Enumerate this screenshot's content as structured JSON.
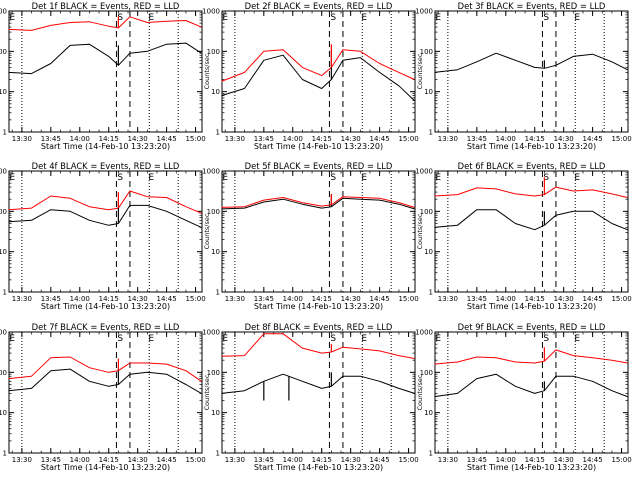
{
  "chart_data": {
    "type": "line",
    "yscale": "log",
    "ylim": [
      1,
      1000
    ],
    "y_ticks": [
      "1",
      "10",
      "100",
      "1000"
    ],
    "ylabel": "Counts/sec",
    "xlabel": "Start Time (14-Feb-10 13:23:20)",
    "xlim": [
      "13:23:20",
      "15:03:20"
    ],
    "x_ticks": [
      "13:30",
      "13:45",
      "14:00",
      "14:15",
      "14:30",
      "14:45",
      "15:00"
    ],
    "series_colors": {
      "events": "#000000",
      "lld": "#ff0000"
    },
    "markers": {
      "dotted": [
        "13:30",
        "14:36",
        "14:51"
      ],
      "dashed": [
        "14:19",
        "14:26"
      ],
      "labels": [
        {
          "text": "E",
          "x": "13:25"
        },
        {
          "text": "S",
          "x": "14:21"
        },
        {
          "text": "E",
          "x": "14:37"
        }
      ]
    },
    "panels": [
      {
        "title": "Det 1f BLACK = Events, RED = LLD",
        "x": [
          "13:23",
          "13:35",
          "13:45",
          "13:55",
          "14:05",
          "14:15",
          "14:20",
          "14:26",
          "14:35",
          "14:45",
          "14:55",
          "15:03"
        ],
        "events": [
          30,
          28,
          50,
          140,
          150,
          75,
          45,
          90,
          100,
          150,
          160,
          90
        ],
        "lld": [
          350,
          330,
          440,
          520,
          540,
          420,
          380,
          720,
          520,
          560,
          580,
          400
        ],
        "spikes": [
          {
            "x": "14:20",
            "events": 140,
            "lld": 720
          }
        ]
      },
      {
        "title": "Det 2f BLACK = Events, RED = LLD",
        "x": [
          "13:23",
          "13:35",
          "13:45",
          "13:55",
          "14:05",
          "14:15",
          "14:20",
          "14:26",
          "14:35",
          "14:45",
          "14:55",
          "15:03"
        ],
        "events": [
          8,
          12,
          60,
          80,
          20,
          12,
          20,
          60,
          70,
          30,
          14,
          6
        ],
        "lld": [
          18,
          30,
          100,
          110,
          40,
          25,
          40,
          110,
          100,
          50,
          30,
          20
        ],
        "spikes": [
          {
            "x": "14:20",
            "events": 110,
            "lld": 150
          }
        ]
      },
      {
        "title": "Det 3f BLACK = Events, RED = LLD",
        "x": [
          "13:23",
          "13:35",
          "13:45",
          "13:55",
          "14:05",
          "14:15",
          "14:20",
          "14:26",
          "14:35",
          "14:45",
          "14:55",
          "15:03"
        ],
        "events": [
          30,
          35,
          55,
          90,
          60,
          40,
          38,
          45,
          75,
          85,
          55,
          35
        ],
        "lld": [],
        "spikes": [
          {
            "x": "14:20",
            "events": 60
          }
        ]
      },
      {
        "title": "Det 4f BLACK = Events, RED = LLD",
        "x": [
          "13:23",
          "13:35",
          "13:45",
          "13:55",
          "14:05",
          "14:15",
          "14:20",
          "14:26",
          "14:35",
          "14:45",
          "14:55",
          "15:03"
        ],
        "events": [
          55,
          60,
          110,
          100,
          60,
          45,
          50,
          140,
          140,
          100,
          60,
          40
        ],
        "lld": [
          110,
          120,
          240,
          210,
          130,
          110,
          120,
          320,
          230,
          220,
          130,
          90
        ],
        "spikes": [
          {
            "x": "14:20",
            "events": 200,
            "lld": 300
          }
        ]
      },
      {
        "title": "Det 5f BLACK = Events, RED = LLD",
        "x": [
          "13:23",
          "13:35",
          "13:45",
          "13:55",
          "14:05",
          "14:15",
          "14:20",
          "14:26",
          "14:35",
          "14:45",
          "14:55",
          "15:03"
        ],
        "events": [
          115,
          120,
          170,
          200,
          150,
          120,
          130,
          210,
          200,
          190,
          150,
          115
        ],
        "lld": [
          125,
          130,
          190,
          220,
          165,
          135,
          145,
          230,
          220,
          210,
          165,
          125
        ],
        "spikes": [
          {
            "x": "14:20",
            "events": 260,
            "lld": 270
          }
        ]
      },
      {
        "title": "Det 6f BLACK = Events, RED = LLD",
        "x": [
          "13:23",
          "13:35",
          "13:45",
          "13:55",
          "14:05",
          "14:15",
          "14:20",
          "14:26",
          "14:35",
          "14:45",
          "14:55",
          "15:03"
        ],
        "events": [
          40,
          45,
          110,
          110,
          50,
          35,
          45,
          80,
          100,
          100,
          50,
          35
        ],
        "lld": [
          240,
          260,
          380,
          360,
          270,
          240,
          260,
          400,
          320,
          340,
          270,
          220
        ],
        "spikes": [
          {
            "x": "14:20",
            "events": 100,
            "lld": 700
          }
        ]
      },
      {
        "title": "Det 7f BLACK = Events, RED = LLD",
        "x": [
          "13:23",
          "13:35",
          "13:45",
          "13:55",
          "14:05",
          "14:15",
          "14:20",
          "14:26",
          "14:35",
          "14:45",
          "14:55",
          "15:03"
        ],
        "events": [
          35,
          40,
          110,
          120,
          60,
          45,
          50,
          90,
          100,
          90,
          50,
          30
        ],
        "lld": [
          70,
          80,
          230,
          240,
          130,
          100,
          110,
          170,
          170,
          160,
          110,
          60
        ],
        "spikes": [
          {
            "x": "14:20",
            "events": 120,
            "lld": 220
          }
        ]
      },
      {
        "title": "Det 8f BLACK = Events, RED = LLD",
        "x": [
          "13:23",
          "13:35",
          "13:45",
          "13:55",
          "14:05",
          "14:15",
          "14:20",
          "14:26",
          "14:35",
          "14:45",
          "14:55",
          "15:03"
        ],
        "events": [
          30,
          35,
          60,
          90,
          60,
          40,
          45,
          80,
          80,
          60,
          40,
          30
        ],
        "lld": [
          250,
          260,
          900,
          900,
          400,
          300,
          320,
          420,
          380,
          340,
          260,
          220
        ],
        "spikes": [
          {
            "x": "13:45",
            "events": 20
          },
          {
            "x": "13:58",
            "events": 20
          },
          {
            "x": "14:20",
            "events": 100,
            "lld": 500
          }
        ]
      },
      {
        "title": "Det 9f BLACK = Events, RED = LLD",
        "x": [
          "13:23",
          "13:35",
          "13:45",
          "13:55",
          "14:05",
          "14:15",
          "14:20",
          "14:26",
          "14:35",
          "14:45",
          "14:55",
          "15:03"
        ],
        "events": [
          25,
          30,
          70,
          90,
          45,
          30,
          35,
          80,
          80,
          60,
          35,
          25
        ],
        "lld": [
          160,
          180,
          240,
          230,
          180,
          170,
          190,
          360,
          260,
          230,
          200,
          170
        ],
        "spikes": [
          {
            "x": "14:20",
            "events": 60,
            "lld": 420
          }
        ]
      }
    ]
  }
}
